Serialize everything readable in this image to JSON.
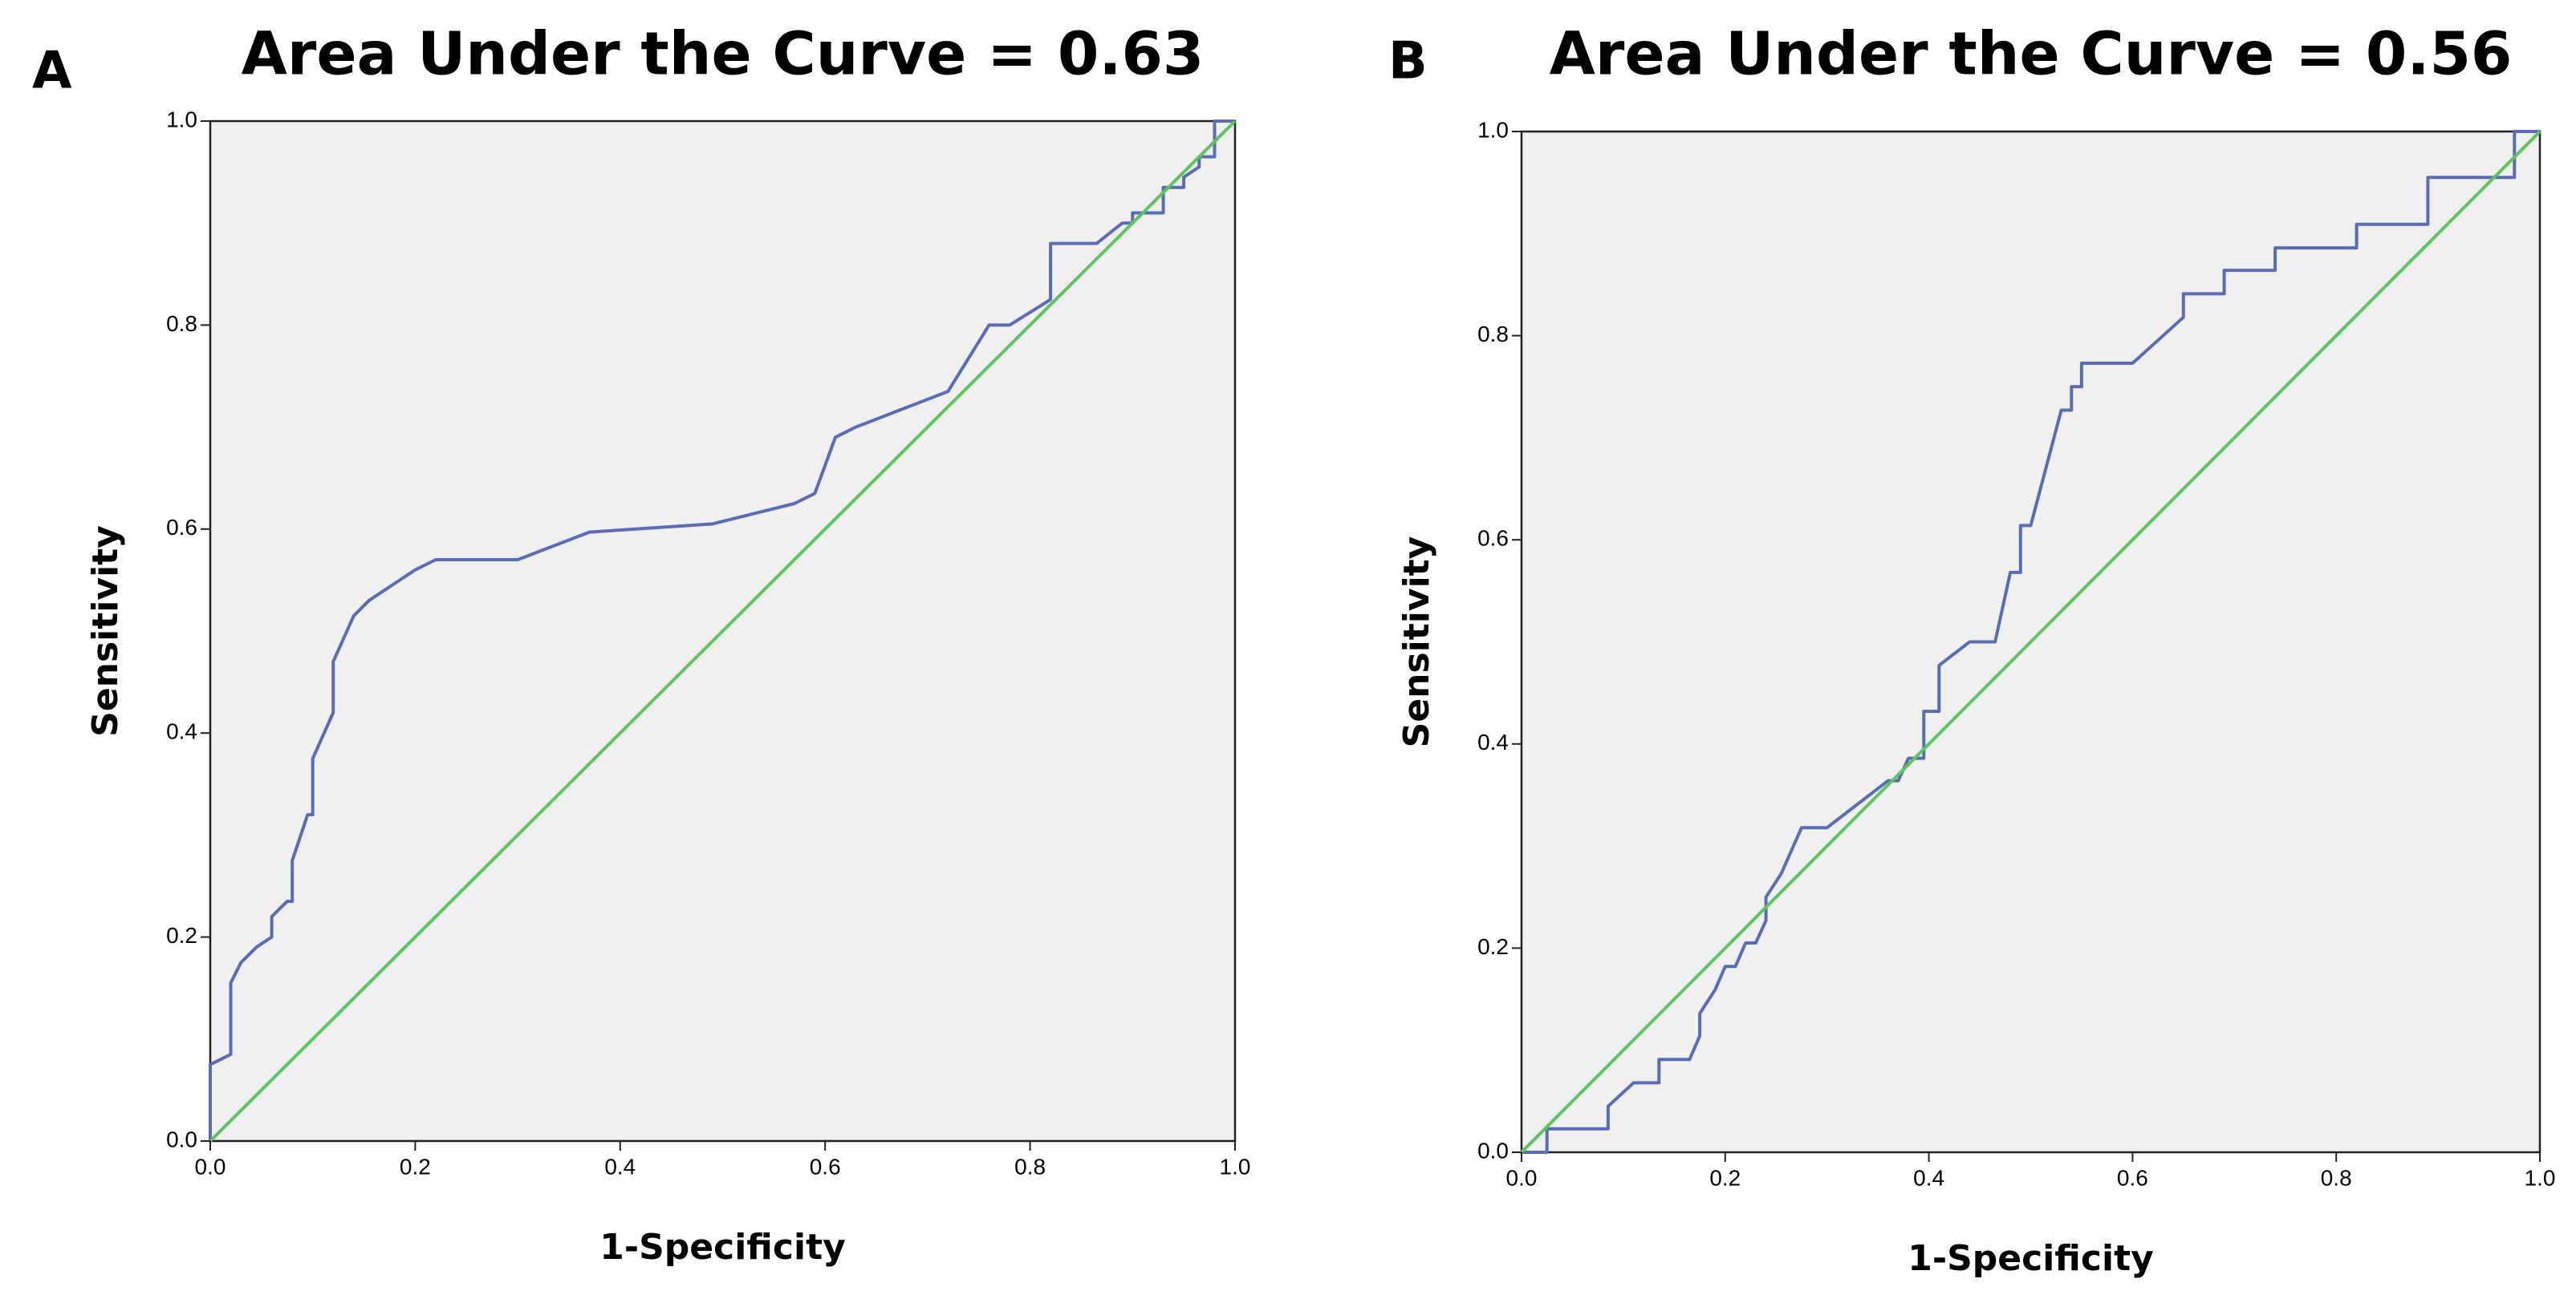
{
  "chart_data": [
    {
      "type": "line",
      "panel_label": "A",
      "title": "Area Under the Curve = 0.63",
      "x_label": "1-Specificity",
      "y_label": "Sensitivity",
      "xlim": [
        0,
        1
      ],
      "ylim": [
        0,
        1
      ],
      "xticks": [
        {
          "value": 0,
          "label": "0.0"
        },
        0.2,
        0.4,
        0.6,
        0.8,
        {
          "value": 1,
          "label": "1.0"
        }
      ],
      "yticks": [
        {
          "value": 0,
          "label": "0.0"
        },
        0.2,
        0.4,
        0.6,
        0.8,
        {
          "value": 1,
          "label": "1.0"
        }
      ],
      "series": [
        {
          "color": "#5a6cb8",
          "x": [
            0,
            0,
            0.02,
            0.02,
            0.03,
            0.045,
            0.06,
            0.06,
            0.075,
            0.08,
            0.08,
            0.095,
            0.1,
            0.1,
            0.12,
            0.12,
            0.14,
            0.155,
            0.2,
            0.22,
            0.3,
            0.37,
            0.49,
            0.57,
            0.59,
            0.61,
            0.63,
            0.72,
            0.76,
            0.78,
            0.82,
            0.82,
            0.865,
            0.89,
            0.9,
            0.9,
            0.93,
            0.93,
            0.95,
            0.95,
            0.965,
            0.965,
            0.98,
            0.98,
            1
          ],
          "values": [
            0,
            0.075,
            0.085,
            0.155,
            0.175,
            0.19,
            0.2,
            0.22,
            0.235,
            0.235,
            0.275,
            0.32,
            0.32,
            0.375,
            0.42,
            0.47,
            0.515,
            0.53,
            0.56,
            0.57,
            0.57,
            0.597,
            0.605,
            0.625,
            0.635,
            0.69,
            0.7,
            0.735,
            0.8,
            0.8,
            0.825,
            0.88,
            0.88,
            0.9,
            0.9,
            0.91,
            0.91,
            0.935,
            0.935,
            0.945,
            0.955,
            0.965,
            0.965,
            1,
            1
          ]
        },
        {
          "color": "#5cc65c",
          "x": [
            0,
            1
          ],
          "values": [
            0,
            1
          ]
        }
      ]
    },
    {
      "type": "line",
      "panel_label": "B",
      "title": "Area Under the Curve = 0.56",
      "x_label": "1-Specificity",
      "y_label": "Sensitivity",
      "xlim": [
        0,
        1
      ],
      "ylim": [
        0,
        1
      ],
      "xticks": [
        {
          "value": 0,
          "label": "0.0"
        },
        0.2,
        0.4,
        0.6,
        0.8,
        {
          "value": 1,
          "label": "1.0"
        }
      ],
      "yticks": [
        {
          "value": 0,
          "label": "0.0"
        },
        0.2,
        0.4,
        0.6,
        0.8,
        {
          "value": 1,
          "label": "1.0"
        }
      ],
      "series": [
        {
          "color": "#5a6cb8",
          "x": [
            0,
            0.025,
            0.025,
            0.085,
            0.085,
            0.11,
            0.135,
            0.135,
            0.165,
            0.175,
            0.175,
            0.19,
            0.2,
            0.21,
            0.22,
            0.23,
            0.24,
            0.24,
            0.255,
            0.275,
            0.3,
            0.36,
            0.37,
            0.38,
            0.395,
            0.395,
            0.41,
            0.41,
            0.44,
            0.465,
            0.48,
            0.49,
            0.49,
            0.5,
            0.53,
            0.54,
            0.54,
            0.55,
            0.55,
            0.6,
            0.65,
            0.65,
            0.69,
            0.69,
            0.74,
            0.74,
            0.82,
            0.82,
            0.89,
            0.89,
            0.975,
            0.975,
            1
          ],
          "values": [
            0,
            0,
            0.023,
            0.023,
            0.045,
            0.068,
            0.068,
            0.091,
            0.091,
            0.114,
            0.136,
            0.159,
            0.182,
            0.182,
            0.205,
            0.205,
            0.227,
            0.25,
            0.273,
            0.318,
            0.318,
            0.364,
            0.364,
            0.386,
            0.386,
            0.432,
            0.432,
            0.477,
            0.5,
            0.5,
            0.568,
            0.568,
            0.614,
            0.614,
            0.727,
            0.727,
            0.75,
            0.75,
            0.773,
            0.773,
            0.818,
            0.841,
            0.841,
            0.864,
            0.864,
            0.886,
            0.886,
            0.909,
            0.909,
            0.955,
            0.955,
            1,
            1
          ]
        },
        {
          "color": "#5cc65c",
          "x": [
            0,
            1
          ],
          "values": [
            0,
            1
          ]
        }
      ]
    }
  ]
}
